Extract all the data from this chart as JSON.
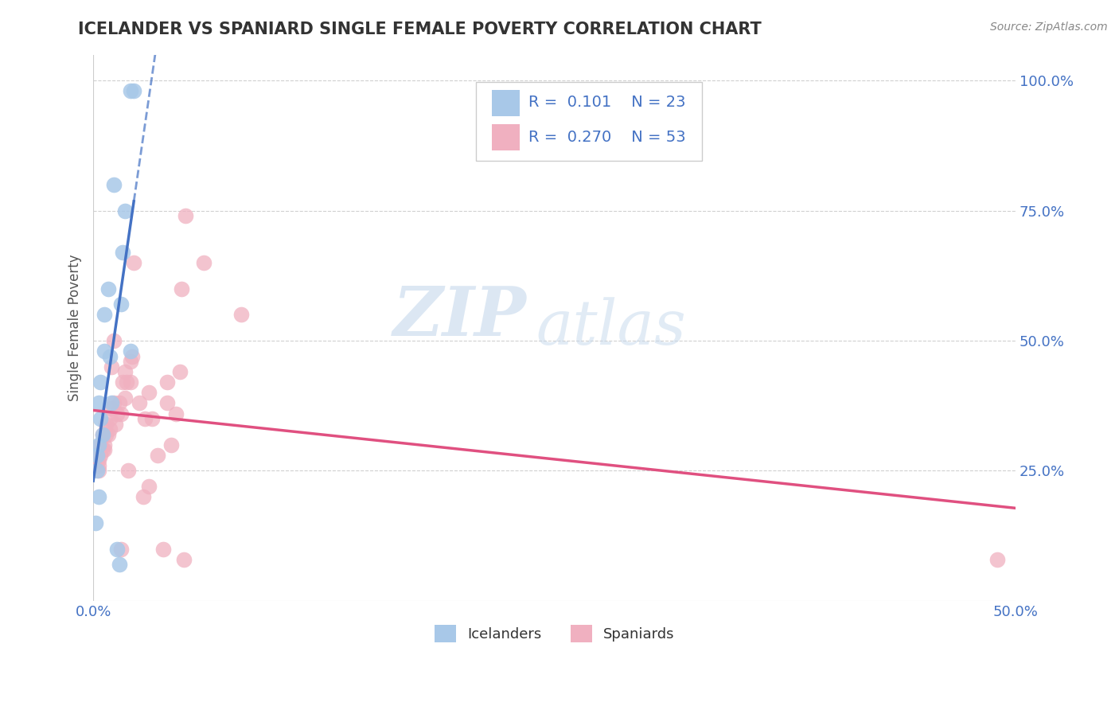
{
  "title": "ICELANDER VS SPANIARD SINGLE FEMALE POVERTY CORRELATION CHART",
  "source": "Source: ZipAtlas.com",
  "ylabel_label": "Single Female Poverty",
  "xlim": [
    0.0,
    0.5
  ],
  "ylim": [
    0.0,
    1.05
  ],
  "xticks": [
    0.0,
    0.1,
    0.2,
    0.3,
    0.4,
    0.5
  ],
  "xticklabels": [
    "0.0%",
    "",
    "",
    "",
    "",
    "50.0%"
  ],
  "yticks": [
    0.25,
    0.5,
    0.75,
    1.0
  ],
  "yticklabels": [
    "25.0%",
    "50.0%",
    "75.0%",
    "100.0%"
  ],
  "icelandic_color": "#a8c8e8",
  "spanish_color": "#f0b0c0",
  "icelandic_line_color": "#4472c4",
  "spanish_line_color": "#e05080",
  "background_color": "#ffffff",
  "grid_color": "#d0d0d0",
  "R_icelandic": 0.101,
  "N_icelandic": 23,
  "R_spanish": 0.27,
  "N_spanish": 53,
  "legend_text_color": "#4472c4",
  "watermark_zip": "ZIP",
  "watermark_atlas": "atlas",
  "icelandic_x": [
    0.001,
    0.002,
    0.002,
    0.003,
    0.003,
    0.003,
    0.004,
    0.004,
    0.005,
    0.006,
    0.006,
    0.008,
    0.009,
    0.01,
    0.011,
    0.013,
    0.014,
    0.015,
    0.016,
    0.017,
    0.02,
    0.02,
    0.022
  ],
  "icelandic_y": [
    0.15,
    0.25,
    0.28,
    0.2,
    0.3,
    0.38,
    0.35,
    0.42,
    0.32,
    0.48,
    0.55,
    0.6,
    0.47,
    0.38,
    0.8,
    0.1,
    0.07,
    0.57,
    0.67,
    0.75,
    0.48,
    0.98,
    0.98
  ],
  "spanish_x": [
    0.001,
    0.002,
    0.003,
    0.003,
    0.003,
    0.004,
    0.004,
    0.005,
    0.005,
    0.006,
    0.006,
    0.007,
    0.007,
    0.008,
    0.009,
    0.009,
    0.01,
    0.01,
    0.011,
    0.011,
    0.012,
    0.013,
    0.014,
    0.015,
    0.015,
    0.016,
    0.017,
    0.017,
    0.018,
    0.019,
    0.02,
    0.02,
    0.021,
    0.022,
    0.025,
    0.027,
    0.028,
    0.03,
    0.03,
    0.032,
    0.035,
    0.038,
    0.04,
    0.04,
    0.042,
    0.045,
    0.047,
    0.048,
    0.049,
    0.05,
    0.06,
    0.08,
    0.49
  ],
  "spanish_y": [
    0.28,
    0.27,
    0.25,
    0.26,
    0.27,
    0.3,
    0.28,
    0.29,
    0.32,
    0.3,
    0.29,
    0.32,
    0.34,
    0.32,
    0.35,
    0.33,
    0.37,
    0.45,
    0.38,
    0.5,
    0.34,
    0.36,
    0.38,
    0.36,
    0.1,
    0.42,
    0.39,
    0.44,
    0.42,
    0.25,
    0.42,
    0.46,
    0.47,
    0.65,
    0.38,
    0.2,
    0.35,
    0.4,
    0.22,
    0.35,
    0.28,
    0.1,
    0.38,
    0.42,
    0.3,
    0.36,
    0.44,
    0.6,
    0.08,
    0.74,
    0.65,
    0.55,
    0.08
  ]
}
